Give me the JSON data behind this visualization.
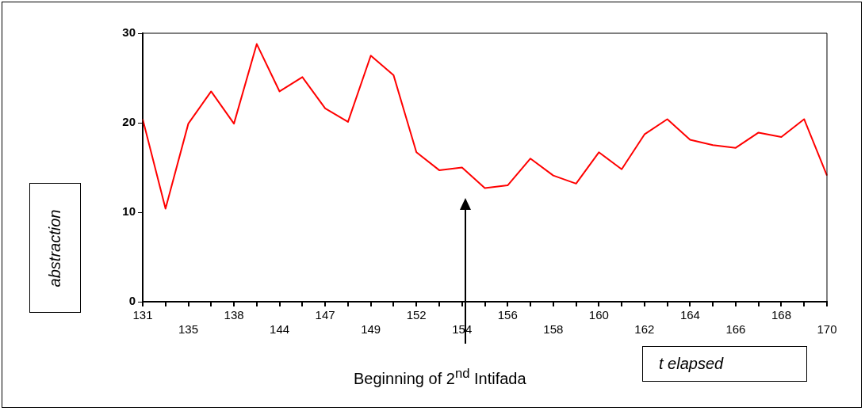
{
  "chart_data": {
    "type": "line",
    "xlabel": "t elapsed",
    "ylabel": "abstraction",
    "categories": [
      "131",
      null,
      "135",
      null,
      "138",
      null,
      "144",
      null,
      "147",
      null,
      "149",
      null,
      "152",
      null,
      "154",
      null,
      "156",
      null,
      "158",
      null,
      "160",
      null,
      "162",
      null,
      "164",
      null,
      "166",
      null,
      "168",
      null,
      "170"
    ],
    "series": [
      {
        "color": "#ff0000",
        "values": [
          20.4,
          10.4,
          19.9,
          23.5,
          19.9,
          28.8,
          23.5,
          25.1,
          21.6,
          20.1,
          27.5,
          25.3,
          16.7,
          14.7,
          15.0,
          12.7,
          13.0,
          16.0,
          14.1,
          13.2,
          16.7,
          14.8,
          18.7,
          20.4,
          18.1,
          17.5,
          17.2,
          18.9,
          18.4,
          20.4,
          14.1
        ]
      }
    ],
    "ylim": [
      0,
      30
    ],
    "yticks": [
      0,
      10,
      20,
      30
    ],
    "grid": false,
    "legend": false,
    "marker": "none",
    "line_style": "solid",
    "annotations": [
      "Beginning of 2$^{nd}$ Intifada"
    ]
  }
}
